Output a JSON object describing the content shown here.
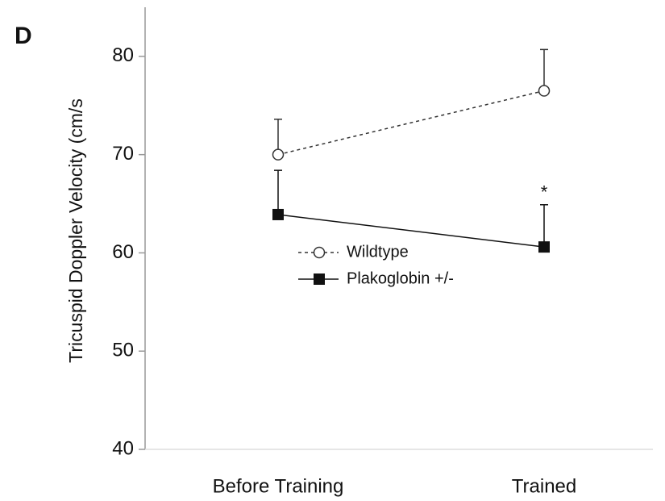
{
  "chart_data": {
    "type": "line",
    "panel_label": "D",
    "ylabel": "Tricuspid Doppler Velocity (cm/s",
    "categories": [
      "Before Training",
      "Trained"
    ],
    "ylim": [
      40,
      85
    ],
    "yticks": [
      40,
      50,
      60,
      70,
      80
    ],
    "series": [
      {
        "name": "Wildtype",
        "color": "#333333",
        "style": "dotted",
        "marker": "circle-open",
        "values": [
          70,
          76.5
        ],
        "errors": [
          3.6,
          4.2
        ]
      },
      {
        "name": "Plakoglobin +/-",
        "color": "#111111",
        "style": "solid",
        "marker": "square",
        "values": [
          63.9,
          60.6
        ],
        "errors": [
          4.5,
          4.3
        ]
      }
    ],
    "annotations": [
      {
        "text": "*",
        "series": 1,
        "index": 1
      }
    ],
    "legend": "center"
  }
}
